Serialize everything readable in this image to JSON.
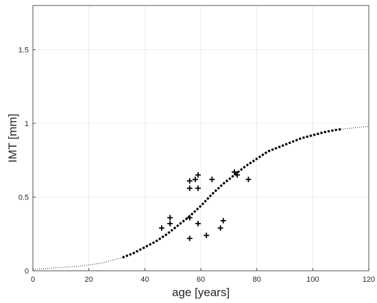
{
  "chart_data": {
    "type": "scatter",
    "title": "",
    "xlabel": "age [years]",
    "ylabel": "IMT [mm]",
    "xlim": [
      0,
      120
    ],
    "ylim": [
      0,
      1.8
    ],
    "xticks": [
      0,
      20,
      40,
      60,
      80,
      100,
      120
    ],
    "yticks": [
      0,
      0.5,
      1,
      1.5
    ],
    "xtick_labels": [
      "0",
      "20",
      "40",
      "60",
      "80",
      "100",
      "120"
    ],
    "ytick_labels": [
      "0",
      "0.5",
      "1",
      "1.5"
    ],
    "grid": true,
    "box": true,
    "series": [
      {
        "kind": "points",
        "marker": "+",
        "color": "#000000",
        "points": [
          {
            "x": 46,
            "y": 0.29
          },
          {
            "x": 49,
            "y": 0.36
          },
          {
            "x": 49,
            "y": 0.32
          },
          {
            "x": 56,
            "y": 0.61
          },
          {
            "x": 56,
            "y": 0.56
          },
          {
            "x": 56,
            "y": 0.36
          },
          {
            "x": 56,
            "y": 0.22
          },
          {
            "x": 58,
            "y": 0.62
          },
          {
            "x": 59,
            "y": 0.65
          },
          {
            "x": 59,
            "y": 0.56
          },
          {
            "x": 59,
            "y": 0.32
          },
          {
            "x": 62,
            "y": 0.24
          },
          {
            "x": 64,
            "y": 0.62
          },
          {
            "x": 67,
            "y": 0.29
          },
          {
            "x": 68,
            "y": 0.34
          },
          {
            "x": 72,
            "y": 0.67
          },
          {
            "x": 73,
            "y": 0.65
          },
          {
            "x": 77,
            "y": 0.62
          }
        ]
      },
      {
        "kind": "curve-thick-dotted",
        "color": "#000000",
        "points": [
          {
            "x": 32,
            "y": 0.09
          },
          {
            "x": 36,
            "y": 0.12
          },
          {
            "x": 40,
            "y": 0.16
          },
          {
            "x": 44,
            "y": 0.2
          },
          {
            "x": 48,
            "y": 0.25
          },
          {
            "x": 52,
            "y": 0.31
          },
          {
            "x": 56,
            "y": 0.37
          },
          {
            "x": 60,
            "y": 0.44
          },
          {
            "x": 64,
            "y": 0.52
          },
          {
            "x": 68,
            "y": 0.59
          },
          {
            "x": 72,
            "y": 0.65
          },
          {
            "x": 76,
            "y": 0.71
          },
          {
            "x": 80,
            "y": 0.76
          },
          {
            "x": 84,
            "y": 0.81
          },
          {
            "x": 88,
            "y": 0.84
          },
          {
            "x": 92,
            "y": 0.87
          },
          {
            "x": 96,
            "y": 0.9
          },
          {
            "x": 100,
            "y": 0.92
          },
          {
            "x": 104,
            "y": 0.94
          },
          {
            "x": 108,
            "y": 0.955
          },
          {
            "x": 110,
            "y": 0.96
          }
        ]
      },
      {
        "kind": "curve-thin-dotted",
        "color": "#000000",
        "points": [
          {
            "x": 0,
            "y": 0.01
          },
          {
            "x": 8,
            "y": 0.02
          },
          {
            "x": 16,
            "y": 0.03
          },
          {
            "x": 24,
            "y": 0.05
          },
          {
            "x": 28,
            "y": 0.07
          },
          {
            "x": 32,
            "y": 0.09
          }
        ]
      },
      {
        "kind": "curve-thin-dotted",
        "color": "#000000",
        "points": [
          {
            "x": 110,
            "y": 0.96
          },
          {
            "x": 115,
            "y": 0.97
          },
          {
            "x": 120,
            "y": 0.98
          }
        ]
      }
    ]
  }
}
